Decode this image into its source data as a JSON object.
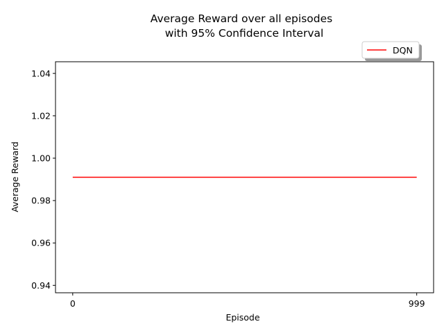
{
  "chart_data": {
    "type": "line",
    "title_lines": [
      "Average Reward over all episodes",
      "with 95% Confidence Interval"
    ],
    "xlabel": "Episode",
    "ylabel": "Average Reward",
    "x_ticks": [
      0,
      999
    ],
    "y_ticks": [
      "0.94",
      "0.96",
      "0.98",
      "1.00",
      "1.02",
      "1.04"
    ],
    "xlim": [
      -50,
      1048
    ],
    "ylim": [
      0.9365,
      1.0455
    ],
    "legend_position": "top-right, above plot",
    "grid": false,
    "series": [
      {
        "name": "DQN",
        "color": "#ff0000",
        "x": [
          0,
          999
        ],
        "y": [
          0.991,
          0.991
        ]
      }
    ]
  }
}
